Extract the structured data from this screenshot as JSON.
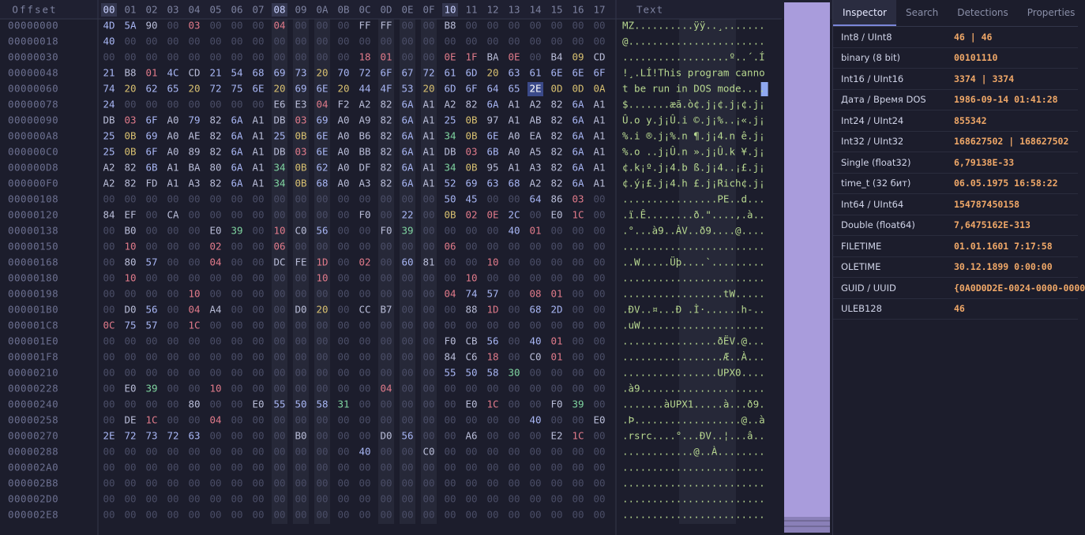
{
  "header": {
    "offset_label": "Offset",
    "text_label": "Text",
    "columns": [
      "00",
      "01",
      "02",
      "03",
      "04",
      "05",
      "06",
      "07",
      "08",
      "09",
      "0A",
      "0B",
      "0C",
      "0D",
      "0E",
      "0F",
      "10",
      "11",
      "12",
      "13",
      "14",
      "15",
      "16",
      "17"
    ]
  },
  "rows": [
    {
      "offset": "00000000",
      "bytes": [
        "4D",
        "5A",
        "90",
        "00",
        "03",
        "00",
        "00",
        "00",
        "04",
        "00",
        "00",
        "00",
        "FF",
        "FF",
        "00",
        "00",
        "B8",
        "00",
        "00",
        "00",
        "00",
        "00",
        "00",
        "00"
      ],
      "text": "MZ..........ÿÿ..¸......."
    },
    {
      "offset": "00000018",
      "bytes": [
        "40",
        "00",
        "00",
        "00",
        "00",
        "00",
        "00",
        "00",
        "00",
        "00",
        "00",
        "00",
        "00",
        "00",
        "00",
        "00",
        "00",
        "00",
        "00",
        "00",
        "00",
        "00",
        "00",
        "00"
      ],
      "text": "@......................."
    },
    {
      "offset": "00000030",
      "bytes": [
        "00",
        "00",
        "00",
        "00",
        "00",
        "00",
        "00",
        "00",
        "00",
        "00",
        "00",
        "00",
        "18",
        "01",
        "00",
        "00",
        "0E",
        "1F",
        "BA",
        "0E",
        "00",
        "B4",
        "09",
        "CD"
      ],
      "text": "..................º..´.Í"
    },
    {
      "offset": "00000048",
      "bytes": [
        "21",
        "B8",
        "01",
        "4C",
        "CD",
        "21",
        "54",
        "68",
        "69",
        "73",
        "20",
        "70",
        "72",
        "6F",
        "67",
        "72",
        "61",
        "6D",
        "20",
        "63",
        "61",
        "6E",
        "6E",
        "6F"
      ],
      "text": "!¸.LÍ!This program canno"
    },
    {
      "offset": "00000060",
      "bytes": [
        "74",
        "20",
        "62",
        "65",
        "20",
        "72",
        "75",
        "6E",
        "20",
        "69",
        "6E",
        "20",
        "44",
        "4F",
        "53",
        "20",
        "6D",
        "6F",
        "64",
        "65",
        "2E",
        "0D",
        "0D",
        "0A"
      ],
      "text": "t be run in DOS mode...."
    },
    {
      "offset": "00000078",
      "bytes": [
        "24",
        "00",
        "00",
        "00",
        "00",
        "00",
        "00",
        "00",
        "E6",
        "E3",
        "04",
        "F2",
        "A2",
        "82",
        "6A",
        "A1",
        "A2",
        "82",
        "6A",
        "A1",
        "A2",
        "82",
        "6A",
        "A1"
      ],
      "text": "$.......æã.ò¢.j¡¢.j¡¢.j¡"
    },
    {
      "offset": "00000090",
      "bytes": [
        "DB",
        "03",
        "6F",
        "A0",
        "79",
        "82",
        "6A",
        "A1",
        "DB",
        "03",
        "69",
        "A0",
        "A9",
        "82",
        "6A",
        "A1",
        "25",
        "0B",
        "97",
        "A1",
        "AB",
        "82",
        "6A",
        "A1"
      ],
      "text": "Û.o y.j¡Û.i ©.j¡%..¡«.j¡"
    },
    {
      "offset": "000000A8",
      "bytes": [
        "25",
        "0B",
        "69",
        "A0",
        "AE",
        "82",
        "6A",
        "A1",
        "25",
        "0B",
        "6E",
        "A0",
        "B6",
        "82",
        "6A",
        "A1",
        "34",
        "0B",
        "6E",
        "A0",
        "EA",
        "82",
        "6A",
        "A1"
      ],
      "text": "%.i ®.j¡%.n ¶.j¡4.n ê.j¡"
    },
    {
      "offset": "000000C0",
      "bytes": [
        "25",
        "0B",
        "6F",
        "A0",
        "89",
        "82",
        "6A",
        "A1",
        "DB",
        "03",
        "6E",
        "A0",
        "BB",
        "82",
        "6A",
        "A1",
        "DB",
        "03",
        "6B",
        "A0",
        "A5",
        "82",
        "6A",
        "A1"
      ],
      "text": "%.o ..j¡Û.n ».j¡Û.k ¥.j¡"
    },
    {
      "offset": "000000D8",
      "bytes": [
        "A2",
        "82",
        "6B",
        "A1",
        "BA",
        "80",
        "6A",
        "A1",
        "34",
        "0B",
        "62",
        "A0",
        "DF",
        "82",
        "6A",
        "A1",
        "34",
        "0B",
        "95",
        "A1",
        "A3",
        "82",
        "6A",
        "A1"
      ],
      "text": "¢.k¡º.j¡4.b ß.j¡4..¡£.j¡"
    },
    {
      "offset": "000000F0",
      "bytes": [
        "A2",
        "82",
        "FD",
        "A1",
        "A3",
        "82",
        "6A",
        "A1",
        "34",
        "0B",
        "68",
        "A0",
        "A3",
        "82",
        "6A",
        "A1",
        "52",
        "69",
        "63",
        "68",
        "A2",
        "82",
        "6A",
        "A1"
      ],
      "text": "¢.ý¡£.j¡4.h £.j¡Rich¢.j¡"
    },
    {
      "offset": "00000108",
      "bytes": [
        "00",
        "00",
        "00",
        "00",
        "00",
        "00",
        "00",
        "00",
        "00",
        "00",
        "00",
        "00",
        "00",
        "00",
        "00",
        "00",
        "50",
        "45",
        "00",
        "00",
        "64",
        "86",
        "03",
        "00"
      ],
      "text": "................PE..d..."
    },
    {
      "offset": "00000120",
      "bytes": [
        "84",
        "EF",
        "00",
        "CA",
        "00",
        "00",
        "00",
        "00",
        "00",
        "00",
        "00",
        "00",
        "F0",
        "00",
        "22",
        "00",
        "0B",
        "02",
        "0E",
        "2C",
        "00",
        "E0",
        "1C",
        "00"
      ],
      "text": ".ï.Ê........ð.\"....,.à.."
    },
    {
      "offset": "00000138",
      "bytes": [
        "00",
        "B0",
        "00",
        "00",
        "00",
        "E0",
        "39",
        "00",
        "10",
        "C0",
        "56",
        "00",
        "00",
        "F0",
        "39",
        "00",
        "00",
        "00",
        "00",
        "40",
        "01",
        "00",
        "00",
        "00"
      ],
      "text": ".°...à9..ÀV..ð9....@...."
    },
    {
      "offset": "00000150",
      "bytes": [
        "00",
        "10",
        "00",
        "00",
        "00",
        "02",
        "00",
        "00",
        "06",
        "00",
        "00",
        "00",
        "00",
        "00",
        "00",
        "00",
        "06",
        "00",
        "00",
        "00",
        "00",
        "00",
        "00",
        "00"
      ],
      "text": "........................"
    },
    {
      "offset": "00000168",
      "bytes": [
        "00",
        "80",
        "57",
        "00",
        "00",
        "04",
        "00",
        "00",
        "DC",
        "FE",
        "1D",
        "00",
        "02",
        "00",
        "60",
        "81",
        "00",
        "00",
        "10",
        "00",
        "00",
        "00",
        "00",
        "00"
      ],
      "text": "..W.....Üþ....`........."
    },
    {
      "offset": "00000180",
      "bytes": [
        "00",
        "10",
        "00",
        "00",
        "00",
        "00",
        "00",
        "00",
        "00",
        "00",
        "10",
        "00",
        "00",
        "00",
        "00",
        "00",
        "00",
        "10",
        "00",
        "00",
        "00",
        "00",
        "00",
        "00"
      ],
      "text": "........................"
    },
    {
      "offset": "00000198",
      "bytes": [
        "00",
        "00",
        "00",
        "00",
        "10",
        "00",
        "00",
        "00",
        "00",
        "00",
        "00",
        "00",
        "00",
        "00",
        "00",
        "00",
        "04",
        "74",
        "57",
        "00",
        "08",
        "01",
        "00",
        "00"
      ],
      "text": ".................tW....."
    },
    {
      "offset": "000001B0",
      "bytes": [
        "00",
        "D0",
        "56",
        "00",
        "04",
        "A4",
        "00",
        "00",
        "00",
        "D0",
        "20",
        "00",
        "CC",
        "B7",
        "00",
        "00",
        "00",
        "88",
        "1D",
        "00",
        "68",
        "2D",
        "00",
        "00"
      ],
      "text": ".ÐV..¤...Ð .Ì·......h-.."
    },
    {
      "offset": "000001C8",
      "bytes": [
        "0C",
        "75",
        "57",
        "00",
        "1C",
        "00",
        "00",
        "00",
        "00",
        "00",
        "00",
        "00",
        "00",
        "00",
        "00",
        "00",
        "00",
        "00",
        "00",
        "00",
        "00",
        "00",
        "00",
        "00"
      ],
      "text": ".uW....................."
    },
    {
      "offset": "000001E0",
      "bytes": [
        "00",
        "00",
        "00",
        "00",
        "00",
        "00",
        "00",
        "00",
        "00",
        "00",
        "00",
        "00",
        "00",
        "00",
        "00",
        "00",
        "F0",
        "CB",
        "56",
        "00",
        "40",
        "01",
        "00",
        "00"
      ],
      "text": "................ðËV.@..."
    },
    {
      "offset": "000001F8",
      "bytes": [
        "00",
        "00",
        "00",
        "00",
        "00",
        "00",
        "00",
        "00",
        "00",
        "00",
        "00",
        "00",
        "00",
        "00",
        "00",
        "00",
        "84",
        "C6",
        "18",
        "00",
        "C0",
        "01",
        "00",
        "00"
      ],
      "text": ".................Æ..À..."
    },
    {
      "offset": "00000210",
      "bytes": [
        "00",
        "00",
        "00",
        "00",
        "00",
        "00",
        "00",
        "00",
        "00",
        "00",
        "00",
        "00",
        "00",
        "00",
        "00",
        "00",
        "55",
        "50",
        "58",
        "30",
        "00",
        "00",
        "00",
        "00"
      ],
      "text": "................UPX0...."
    },
    {
      "offset": "00000228",
      "bytes": [
        "00",
        "E0",
        "39",
        "00",
        "00",
        "10",
        "00",
        "00",
        "00",
        "00",
        "00",
        "00",
        "00",
        "04",
        "00",
        "00",
        "00",
        "00",
        "00",
        "00",
        "00",
        "00",
        "00",
        "00"
      ],
      "text": ".à9....................."
    },
    {
      "offset": "00000240",
      "bytes": [
        "00",
        "00",
        "00",
        "00",
        "80",
        "00",
        "00",
        "E0",
        "55",
        "50",
        "58",
        "31",
        "00",
        "00",
        "00",
        "00",
        "00",
        "E0",
        "1C",
        "00",
        "00",
        "F0",
        "39",
        "00"
      ],
      "text": ".......àUPX1.....à...ð9."
    },
    {
      "offset": "00000258",
      "bytes": [
        "00",
        "DE",
        "1C",
        "00",
        "00",
        "04",
        "00",
        "00",
        "00",
        "00",
        "00",
        "00",
        "00",
        "00",
        "00",
        "00",
        "00",
        "00",
        "00",
        "00",
        "40",
        "00",
        "00",
        "E0"
      ],
      "text": ".Þ..................@..à"
    },
    {
      "offset": "00000270",
      "bytes": [
        "2E",
        "72",
        "73",
        "72",
        "63",
        "00",
        "00",
        "00",
        "00",
        "B0",
        "00",
        "00",
        "00",
        "D0",
        "56",
        "00",
        "00",
        "A6",
        "00",
        "00",
        "00",
        "E2",
        "1C",
        "00"
      ],
      "text": ".rsrc....°...ÐV..¦...â.."
    },
    {
      "offset": "00000288",
      "bytes": [
        "00",
        "00",
        "00",
        "00",
        "00",
        "00",
        "00",
        "00",
        "00",
        "00",
        "00",
        "00",
        "40",
        "00",
        "00",
        "C0",
        "00",
        "00",
        "00",
        "00",
        "00",
        "00",
        "00",
        "00"
      ],
      "text": "............@..À........"
    },
    {
      "offset": "000002A0",
      "bytes": [
        "00",
        "00",
        "00",
        "00",
        "00",
        "00",
        "00",
        "00",
        "00",
        "00",
        "00",
        "00",
        "00",
        "00",
        "00",
        "00",
        "00",
        "00",
        "00",
        "00",
        "00",
        "00",
        "00",
        "00"
      ],
      "text": "........................"
    },
    {
      "offset": "000002B8",
      "bytes": [
        "00",
        "00",
        "00",
        "00",
        "00",
        "00",
        "00",
        "00",
        "00",
        "00",
        "00",
        "00",
        "00",
        "00",
        "00",
        "00",
        "00",
        "00",
        "00",
        "00",
        "00",
        "00",
        "00",
        "00"
      ],
      "text": "........................"
    },
    {
      "offset": "000002D0",
      "bytes": [
        "00",
        "00",
        "00",
        "00",
        "00",
        "00",
        "00",
        "00",
        "00",
        "00",
        "00",
        "00",
        "00",
        "00",
        "00",
        "00",
        "00",
        "00",
        "00",
        "00",
        "00",
        "00",
        "00",
        "00"
      ],
      "text": "........................"
    },
    {
      "offset": "000002E8",
      "bytes": [
        "00",
        "00",
        "00",
        "00",
        "00",
        "00",
        "00",
        "00",
        "00",
        "00",
        "00",
        "00",
        "00",
        "00",
        "00",
        "00",
        "00",
        "00",
        "00",
        "00",
        "00",
        "00",
        "00",
        "00"
      ],
      "text": "........................"
    }
  ],
  "inspector": {
    "tabs": [
      "Inspector",
      "Search",
      "Detections",
      "Properties"
    ],
    "fields": [
      {
        "label": "Int8 / UInt8",
        "value": "46 | 46"
      },
      {
        "label": "binary (8 bit)",
        "value": "00101110"
      },
      {
        "label": "Int16 / UInt16",
        "value": "3374 | 3374"
      },
      {
        "label": "Дата / Время DOS",
        "value": "1986-09-14 01:41:28"
      },
      {
        "label": "Int24 / UInt24",
        "value": "855342"
      },
      {
        "label": "Int32 / UInt32",
        "value": "168627502 | 168627502"
      },
      {
        "label": "Single (float32)",
        "value": "6,79138E-33"
      },
      {
        "label": "time_t (32 бит)",
        "value": "06.05.1975 16:58:22"
      },
      {
        "label": "Int64 / UInt64",
        "value": "154787450158"
      },
      {
        "label": "Double (float64)",
        "value": "7,6475162E-313"
      },
      {
        "label": "FILETIME",
        "value": "01.01.1601 7:17:58"
      },
      {
        "label": "OLETIME",
        "value": "30.12.1899 0:00:00"
      },
      {
        "label": "GUID / UUID",
        "value": "{0A0D0D2E-0024-0000-0000"
      },
      {
        "label": "ULEB128",
        "value": "46"
      }
    ]
  }
}
